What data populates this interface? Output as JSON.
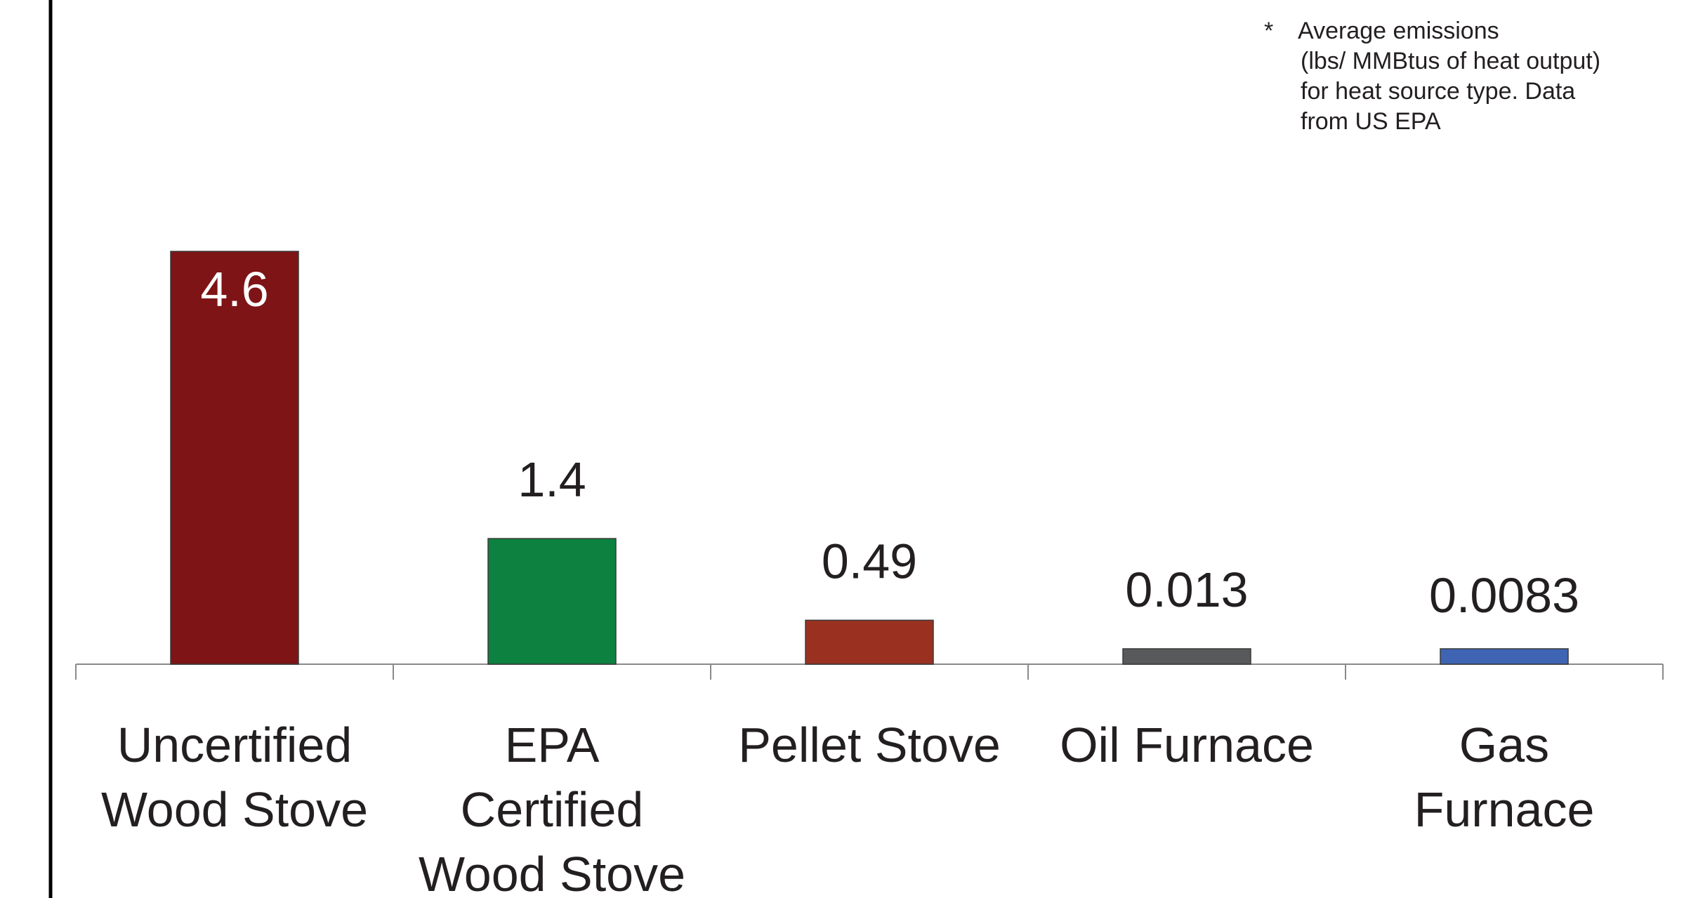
{
  "chart_data": {
    "type": "bar",
    "categories": [
      [
        "Uncertified",
        "Wood Stove"
      ],
      [
        "EPA",
        "Certified",
        "Wood Stove"
      ],
      [
        "Pellet Stove"
      ],
      [
        "Oil Furnace"
      ],
      [
        "Gas",
        "Furnace"
      ]
    ],
    "values": [
      4.6,
      1.4,
      0.49,
      0.013,
      0.0083
    ],
    "value_labels": [
      "4.6",
      "1.4",
      "0.49",
      "0.013",
      "0.0083"
    ],
    "colors": [
      "#7e1416",
      "#0d8140",
      "#9a3120",
      "#58595b",
      "#3e64b3"
    ],
    "footnote": {
      "marker": "*",
      "lines": [
        "Average emissions",
        "(lbs/ MMBtus of heat output)",
        "for heat source type. Data",
        "from US EPA"
      ]
    },
    "title": "",
    "xlabel": "",
    "ylabel": "",
    "grid": false,
    "legend": "none"
  }
}
